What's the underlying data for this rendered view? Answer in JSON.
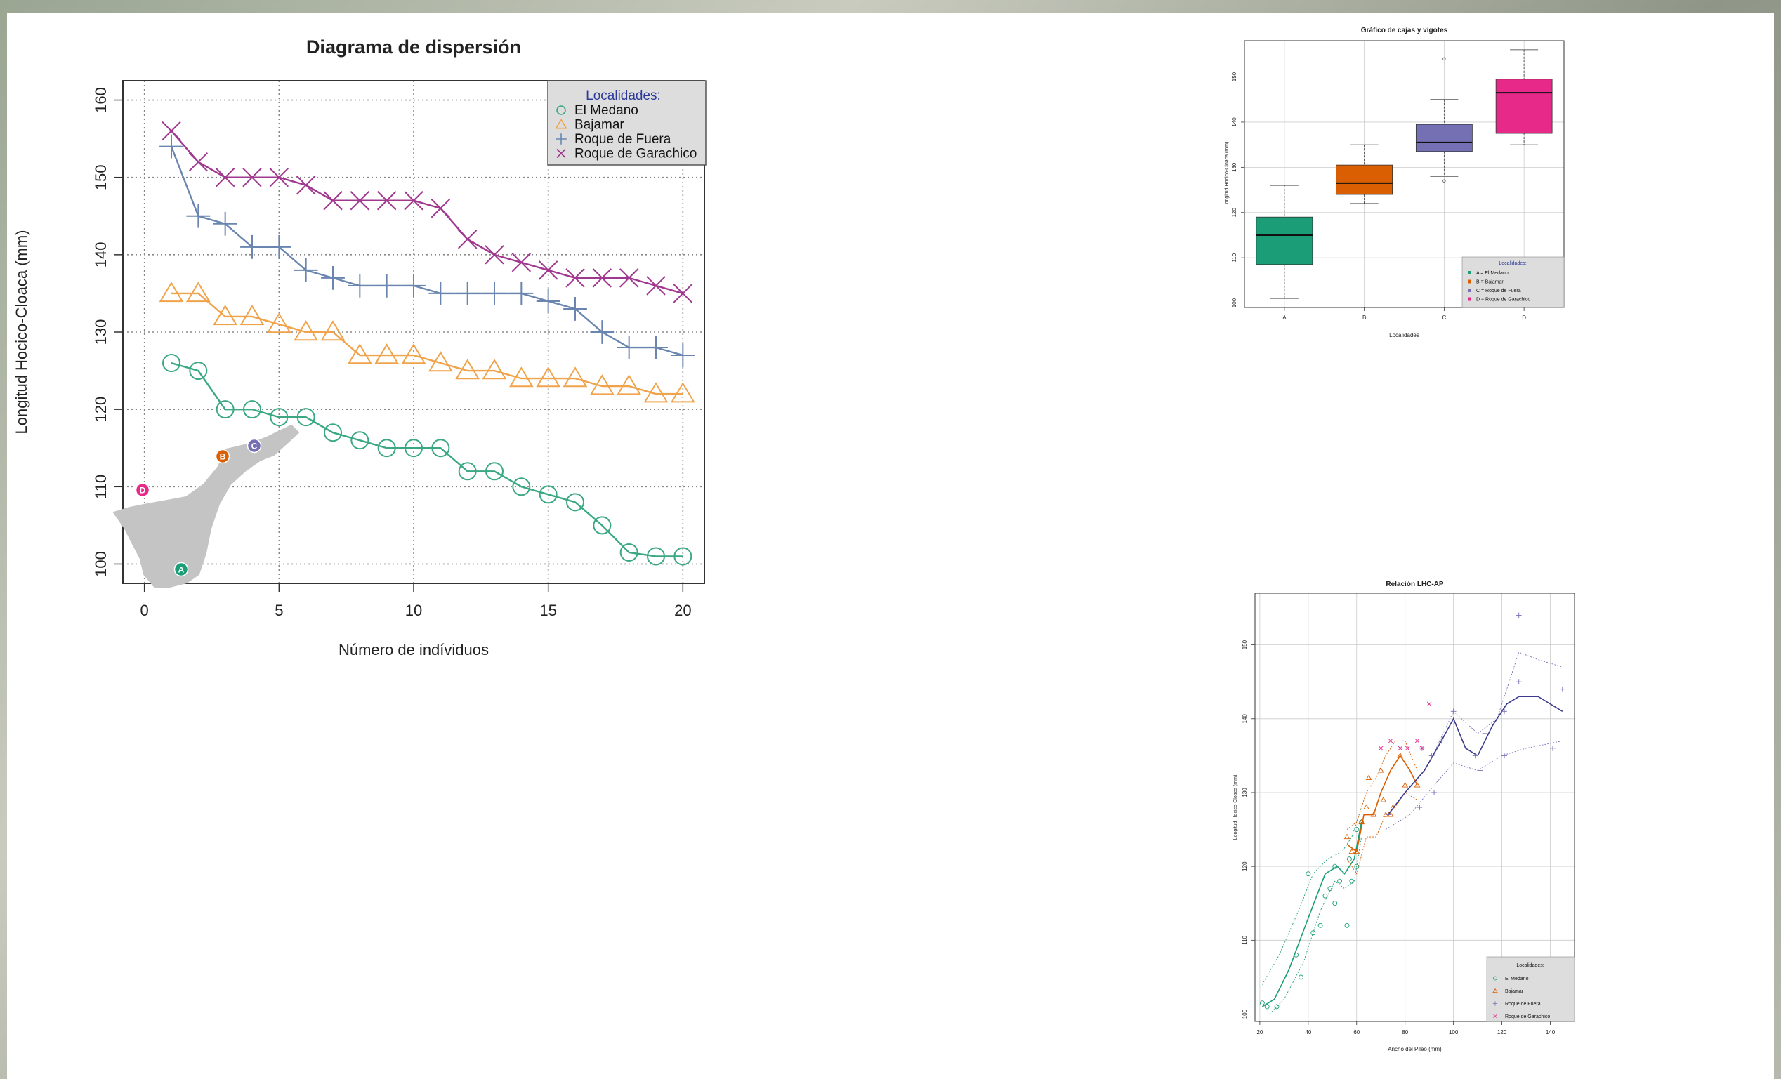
{
  "chart_data": [
    {
      "type": "line",
      "title": "Diagrama de dispersión",
      "xlabel": "Número de indíviduos",
      "ylabel": "Longitud Hocico-Cloaca (mm)",
      "xlim": [
        -0.8,
        20.8
      ],
      "ylim": [
        97.5,
        162.5
      ],
      "xticks": [
        "0",
        "5",
        "10",
        "15",
        "20"
      ],
      "yticks": [
        "100",
        "110",
        "120",
        "130",
        "140",
        "150",
        "160"
      ],
      "grid": true,
      "legend": {
        "title": "Localidades:",
        "placement": "top-right"
      },
      "series": [
        {
          "name": "El Medano",
          "marker": "circle",
          "color": "#3aa882",
          "x": [
            1,
            2,
            3,
            4,
            5,
            6,
            7,
            8,
            9,
            10,
            11,
            12,
            13,
            14,
            15,
            16,
            17,
            18,
            19,
            20
          ],
          "values": [
            126,
            125,
            120,
            120,
            119,
            119,
            117,
            116,
            115,
            115,
            115,
            112,
            112,
            110,
            109,
            108,
            105,
            101.5,
            101,
            101
          ]
        },
        {
          "name": "Bajamar",
          "marker": "triangle",
          "color": "#f0a34a",
          "x": [
            1,
            2,
            3,
            4,
            5,
            6,
            7,
            8,
            9,
            10,
            11,
            12,
            13,
            14,
            15,
            16,
            17,
            18,
            19,
            20
          ],
          "values": [
            135,
            135,
            132,
            132,
            131,
            130,
            130,
            127,
            127,
            127,
            126,
            125,
            125,
            124,
            124,
            124,
            123,
            123,
            122,
            122
          ]
        },
        {
          "name": "Roque de Fuera",
          "marker": "plus",
          "color": "#6a86b0",
          "x": [
            1,
            2,
            3,
            4,
            5,
            6,
            7,
            8,
            9,
            10,
            11,
            12,
            13,
            14,
            15,
            16,
            17,
            18,
            19,
            20
          ],
          "values": [
            154,
            145,
            144,
            141,
            141,
            138,
            137,
            136,
            136,
            136,
            135,
            135,
            135,
            135,
            134,
            133,
            130,
            128,
            128,
            127
          ]
        },
        {
          "name": "Roque de Garachico",
          "marker": "cross",
          "color": "#a0388f",
          "x": [
            1,
            2,
            3,
            4,
            5,
            6,
            7,
            8,
            9,
            10,
            11,
            12,
            13,
            14,
            15,
            16,
            17,
            18,
            19,
            20
          ],
          "values": [
            156,
            152,
            150,
            150,
            150,
            149,
            147,
            147,
            147,
            147,
            146,
            142,
            140,
            139,
            138,
            137,
            137,
            137,
            136,
            135
          ]
        }
      ],
      "inset_map": {
        "labels": [
          "A",
          "B",
          "C",
          "D"
        ]
      }
    },
    {
      "type": "boxplot",
      "title": "Gráfico de cajas y vigotes",
      "xlabel": "Localidades",
      "ylabel": "Longitud Hocico-Cloaca (mm)",
      "categories": [
        "A",
        "B",
        "C",
        "D"
      ],
      "ylim": [
        99,
        158
      ],
      "yticks": [
        "100",
        "110",
        "120",
        "130",
        "140",
        "150"
      ],
      "boxes": [
        {
          "min": 101,
          "q1": 108.5,
          "median": 115,
          "q3": 119,
          "max": 126,
          "outliers": [],
          "color": "#1b9e77"
        },
        {
          "min": 122,
          "q1": 124,
          "median": 126.5,
          "q3": 130.5,
          "max": 135,
          "outliers": [],
          "color": "#d95f02"
        },
        {
          "min": 128,
          "q1": 133.5,
          "median": 135.5,
          "q3": 139.5,
          "max": 145,
          "outliers": [
            154,
            127
          ],
          "color": "#7570b3"
        },
        {
          "min": 135,
          "q1": 137.5,
          "median": 146.5,
          "q3": 149.5,
          "max": 156,
          "outliers": [],
          "color": "#e7298a"
        }
      ],
      "legend": {
        "title": "Localidades:",
        "placement": "bottom-right",
        "entries": [
          "A = El Medano",
          "B = Bajamar",
          "C = Roque de Fuera",
          "D = Roque de Garachico"
        ]
      }
    },
    {
      "type": "scatter",
      "title": "Relación LHC-AP",
      "xlabel": "Ancho del Pileo (mm)",
      "ylabel": "Longitud Hocico-Cloaca (mm)",
      "xlim": [
        18,
        150
      ],
      "ylim": [
        99,
        157
      ],
      "xticks": [
        "20",
        "40",
        "60",
        "80",
        "100",
        "120",
        "140"
      ],
      "yticks": [
        "100",
        "110",
        "120",
        "130",
        "140",
        "150"
      ],
      "legend": {
        "title": "Localidades:",
        "placement": "bottom-right",
        "entries": [
          "El Medano",
          "Bajamar",
          "Roque de Fuera",
          "Roque de Garachico"
        ]
      },
      "series": [
        {
          "name": "El Medano",
          "marker": "circle",
          "color": "#1b9e77",
          "points": [
            [
              21,
              101.5
            ],
            [
              23,
              101
            ],
            [
              27,
              101
            ],
            [
              35,
              108
            ],
            [
              37,
              105
            ],
            [
              40,
              119
            ],
            [
              42,
              111
            ],
            [
              45,
              112
            ],
            [
              47,
              116
            ],
            [
              49,
              117
            ],
            [
              51,
              115
            ],
            [
              51,
              120
            ],
            [
              53,
              118
            ],
            [
              56,
              112
            ],
            [
              57,
              121
            ],
            [
              58,
              118
            ],
            [
              60,
              120
            ],
            [
              60,
              125
            ],
            [
              62,
              126
            ]
          ],
          "smooth": [
            [
              21,
              101
            ],
            [
              26,
              102
            ],
            [
              32,
              106
            ],
            [
              40,
              113
            ],
            [
              47,
              119
            ],
            [
              52,
              120
            ],
            [
              55,
              119
            ],
            [
              59,
              121
            ],
            [
              62,
              126
            ]
          ],
          "band_upper": [
            [
              21,
              104
            ],
            [
              28,
              108
            ],
            [
              36,
              114
            ],
            [
              42,
              119
            ],
            [
              48,
              121
            ],
            [
              54,
              122
            ],
            [
              58,
              124
            ],
            [
              62,
              128
            ]
          ],
          "band_lower": [
            [
              24,
              100
            ],
            [
              30,
              102
            ],
            [
              38,
              107
            ],
            [
              45,
              114
            ],
            [
              51,
              118
            ],
            [
              55,
              117
            ],
            [
              59,
              118
            ],
            [
              62,
              124
            ]
          ]
        },
        {
          "name": "Bajamar",
          "marker": "triangle",
          "color": "#d95f02",
          "points": [
            [
              56,
              124
            ],
            [
              58,
              122
            ],
            [
              60,
              122
            ],
            [
              62,
              126
            ],
            [
              64,
              128
            ],
            [
              65,
              132
            ],
            [
              67,
              127
            ],
            [
              70,
              133
            ],
            [
              71,
              129
            ],
            [
              72,
              127
            ],
            [
              74,
              127
            ],
            [
              75,
              128
            ],
            [
              78,
              135
            ],
            [
              80,
              131
            ],
            [
              85,
              131
            ]
          ],
          "smooth": [
            [
              56,
              123
            ],
            [
              60,
              122
            ],
            [
              63,
              127
            ],
            [
              67,
              127
            ],
            [
              70,
              130
            ],
            [
              74,
              133
            ],
            [
              78,
              135
            ],
            [
              82,
              133
            ],
            [
              85,
              131
            ]
          ],
          "band_upper": [
            [
              56,
              125
            ],
            [
              60,
              126
            ],
            [
              64,
              130
            ],
            [
              68,
              132
            ],
            [
              72,
              135
            ],
            [
              76,
              137
            ],
            [
              80,
              137
            ],
            [
              85,
              133
            ]
          ],
          "band_lower": [
            [
              56,
              121
            ],
            [
              60,
              119
            ],
            [
              64,
              124
            ],
            [
              68,
              124
            ],
            [
              72,
              127
            ],
            [
              76,
              128
            ],
            [
              80,
              130
            ],
            [
              85,
              129
            ]
          ]
        },
        {
          "name": "Roque de Fuera",
          "marker": "plus",
          "color": "#7570b3",
          "points": [
            [
              73,
              127
            ],
            [
              86,
              128
            ],
            [
              87,
              136
            ],
            [
              91,
              135
            ],
            [
              92,
              130
            ],
            [
              95,
              137
            ],
            [
              100,
              141
            ],
            [
              109,
              135
            ],
            [
              111,
              133
            ],
            [
              113,
              138
            ],
            [
              121,
              135
            ],
            [
              121,
              141
            ],
            [
              127,
              154
            ],
            [
              127,
              145
            ],
            [
              141,
              136
            ],
            [
              145,
              144
            ]
          ],
          "smooth": [
            [
              73,
              127
            ],
            [
              80,
              130
            ],
            [
              88,
              133
            ],
            [
              95,
              137
            ],
            [
              100,
              140
            ],
            [
              105,
              136
            ],
            [
              110,
              135
            ],
            [
              116,
              139
            ],
            [
              122,
              142
            ],
            [
              127,
              143
            ],
            [
              135,
              143
            ],
            [
              145,
              141
            ]
          ],
          "band_upper": [
            [
              90,
              134
            ],
            [
              100,
              141
            ],
            [
              110,
              138
            ],
            [
              118,
              140
            ],
            [
              127,
              149
            ],
            [
              135,
              148
            ],
            [
              145,
              147
            ]
          ],
          "band_lower": [
            [
              72,
              125
            ],
            [
              82,
              127
            ],
            [
              92,
              131
            ],
            [
              100,
              134
            ],
            [
              110,
              133
            ],
            [
              120,
              135
            ],
            [
              130,
              136
            ],
            [
              145,
              137
            ]
          ]
        },
        {
          "name": "Roque de Garachico",
          "marker": "cross",
          "color": "#e7298a",
          "points": [
            [
              70,
              136
            ],
            [
              74,
              137
            ],
            [
              78,
              136
            ],
            [
              81,
              136
            ],
            [
              85,
              137
            ],
            [
              87,
              136
            ],
            [
              90,
              142
            ]
          ]
        }
      ]
    }
  ],
  "icon": "tenerife-island-map"
}
